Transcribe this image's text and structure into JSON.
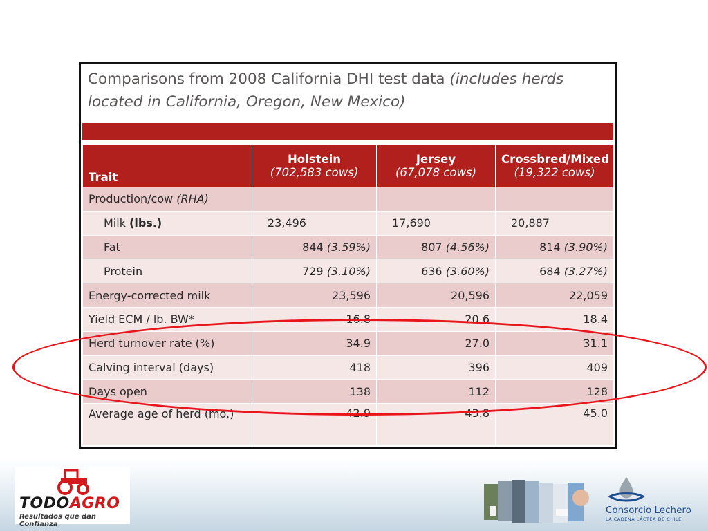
{
  "title": {
    "main": "Comparisons from 2008 California DHI test data ",
    "italic": "(includes herds located in California, Oregon, New Mexico)"
  },
  "table": {
    "headers": {
      "trait": "Trait",
      "holstein": {
        "name": "Holstein",
        "count": "(702,583 cows)"
      },
      "jersey": {
        "name": "Jersey",
        "count": "(67,078 cows)"
      },
      "crossbred": {
        "name": "Crossbred/Mixed",
        "count": "(19,322 cows)"
      }
    },
    "production": {
      "label": "Production/cow ",
      "label_italic": "(RHA)"
    },
    "milk": {
      "label": "Milk ",
      "label_bold": "(lbs.)",
      "holstein": "23,496",
      "jersey": "17,690",
      "crossbred": "20,887"
    },
    "fat": {
      "label": "Fat",
      "holstein": "844 ",
      "holstein_pct": "(3.59%)",
      "jersey": "807 ",
      "jersey_pct": "(4.56%)",
      "crossbred": "814 ",
      "crossbred_pct": "(3.90%)"
    },
    "protein": {
      "label": "Protein",
      "holstein": "729 ",
      "holstein_pct": "(3.10%)",
      "jersey": "636 ",
      "jersey_pct": "(3.60%)",
      "crossbred": "684 ",
      "crossbred_pct": "(3.27%)"
    },
    "ecm": {
      "label": "Energy-corrected milk",
      "holstein": "23,596",
      "jersey": "20,596",
      "crossbred": "22,059"
    },
    "yield": {
      "label": "Yield ECM / lb. BW*",
      "holstein": "16.8",
      "jersey": "20.6",
      "crossbred": "18.4"
    },
    "turnover": {
      "label": "Herd turnover rate (%)",
      "holstein": "34.9",
      "jersey": "27.0",
      "crossbred": "31.1"
    },
    "calving": {
      "label": "Calving interval (days)",
      "holstein": "418",
      "jersey": "396",
      "crossbred": "409"
    },
    "days_open": {
      "label": "Days open",
      "holstein": "138",
      "jersey": "112",
      "crossbred": "128"
    },
    "age": {
      "label": "Average age of herd (mo.)",
      "holstein": "42.9",
      "jersey": "43.8",
      "crossbred": "45.0"
    }
  },
  "logo_left": {
    "name_a": "TODO",
    "name_b": "AGRO",
    "tagline": "Resultados que dan Confianza"
  },
  "logo_right": {
    "name": "Consorcio Lechero",
    "tagline": "LA CADENA LÁCTEA DE CHILE"
  },
  "colors": {
    "header_red": "#b2201e",
    "row_dark": "#e9cccb",
    "row_light": "#f5e7e6",
    "oval_red": "#e8161b"
  }
}
